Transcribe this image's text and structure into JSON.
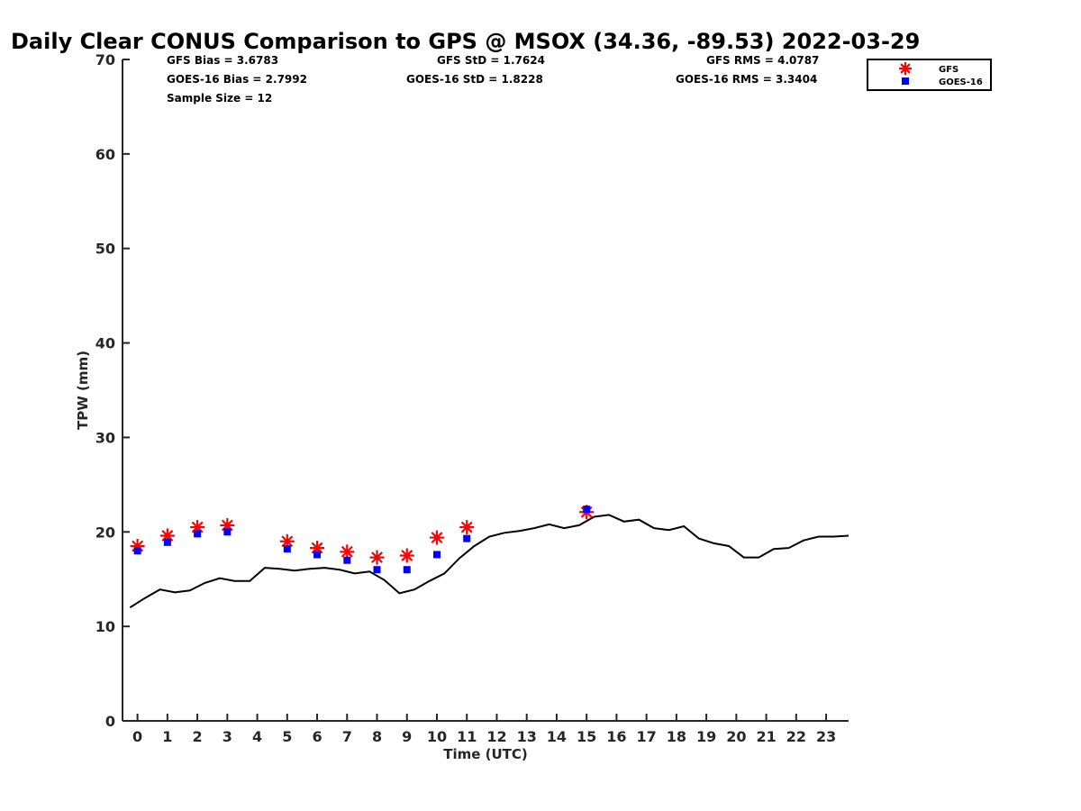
{
  "chart_data": {
    "type": "scatter",
    "title": "Daily Clear CONUS Comparison to GPS @ MSOX (34.36, -89.53) 2022-03-29",
    "xlabel": "Time (UTC)",
    "ylabel": "TPW (mm)",
    "xlim": [
      -0.5,
      23.75
    ],
    "ylim": [
      0,
      70
    ],
    "x_ticks": [
      "0",
      "1",
      "2",
      "3",
      "4",
      "5",
      "6",
      "7",
      "8",
      "9",
      "10",
      "11",
      "12",
      "13",
      "14",
      "15",
      "16",
      "17",
      "18",
      "19",
      "20",
      "21",
      "22",
      "23"
    ],
    "y_ticks": [
      "0",
      "10",
      "20",
      "30",
      "40",
      "50",
      "60",
      "70"
    ],
    "grid": false,
    "legend_position": "top-right",
    "stats": {
      "gfs_bias": "GFS Bias = 3.6783",
      "goes_bias": "GOES-16 Bias = 2.7992",
      "sample_size": "Sample Size = 12",
      "gfs_std": "GFS StD = 1.7624",
      "goes_std": "GOES-16 StD = 1.8228",
      "gfs_rms": "GFS RMS = 4.0787",
      "goes_rms": "GOES-16 RMS = 3.3404"
    },
    "series": [
      {
        "name": "GFS",
        "marker": "asterisk",
        "color": "#ff0000",
        "x": [
          0,
          1,
          2,
          3,
          5,
          6,
          7,
          8,
          9,
          10,
          11,
          15
        ],
        "y": [
          18.5,
          19.6,
          20.5,
          20.7,
          19.0,
          18.3,
          17.9,
          17.3,
          17.5,
          19.4,
          20.5,
          22.1
        ]
      },
      {
        "name": "GOES-16",
        "marker": "square",
        "color": "#0000ff",
        "x": [
          0,
          1,
          2,
          3,
          5,
          6,
          7,
          8,
          9,
          10,
          11,
          15
        ],
        "y": [
          18.0,
          18.9,
          19.8,
          20.0,
          18.2,
          17.6,
          17.0,
          16.0,
          16.0,
          17.6,
          19.3,
          22.4
        ]
      },
      {
        "type": "line",
        "color": "#000000",
        "x": [
          -0.25,
          0.25,
          0.75,
          1.25,
          1.75,
          2.25,
          2.75,
          3.25,
          3.75,
          4.25,
          4.75,
          5.25,
          5.75,
          6.25,
          6.75,
          7.25,
          7.75,
          8.25,
          8.75,
          9.25,
          9.75,
          10.25,
          10.75,
          11.25,
          11.75,
          12.25,
          12.75,
          13.25,
          13.75,
          14.25,
          14.75,
          15.25,
          15.75,
          16.25,
          16.75,
          17.25,
          17.75,
          18.25,
          18.75,
          19.25,
          19.75,
          20.25,
          20.75,
          21.25,
          21.75,
          22.25,
          22.75,
          23.25,
          23.75
        ],
        "y": [
          12.0,
          13.0,
          13.9,
          13.6,
          13.8,
          14.6,
          15.1,
          14.8,
          14.8,
          16.2,
          16.1,
          15.9,
          16.1,
          16.2,
          16.0,
          15.6,
          15.8,
          14.9,
          13.5,
          13.9,
          14.8,
          15.6,
          17.2,
          18.5,
          19.5,
          19.9,
          20.1,
          20.4,
          20.8,
          20.4,
          20.7,
          21.6,
          21.8,
          21.1,
          21.3,
          20.4,
          20.2,
          20.6,
          19.3,
          18.8,
          18.5,
          17.3,
          17.3,
          18.2,
          18.3,
          19.1,
          19.5,
          19.5,
          19.6
        ]
      }
    ]
  }
}
